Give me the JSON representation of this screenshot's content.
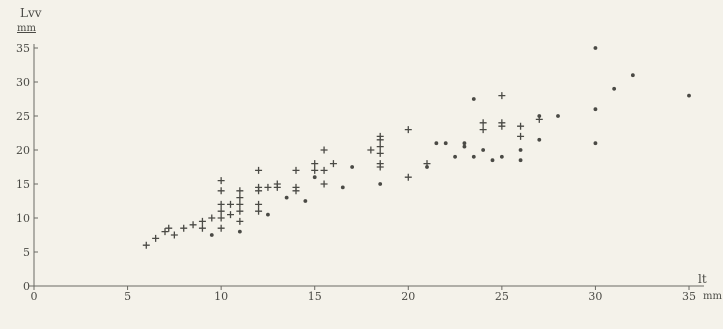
{
  "chart_data": {
    "type": "scatter",
    "title": "",
    "ylabel": "Lvv",
    "yunit": "mm",
    "xlabel": "lt",
    "xunit": "mm",
    "xlim": [
      0,
      35
    ],
    "ylim": [
      0,
      35
    ],
    "x_ticks": [
      0,
      5,
      10,
      15,
      20,
      25,
      30,
      35
    ],
    "y_ticks": [
      0,
      5,
      10,
      15,
      20,
      25,
      30,
      35
    ],
    "x_tick_labels": [
      "0",
      "5",
      "10",
      "15",
      "20",
      "25",
      "30",
      "35"
    ],
    "y_tick_labels": [
      "0",
      "5",
      "10",
      "15",
      "20",
      "25",
      "30",
      "35"
    ],
    "grid": false,
    "mark_color": "#4a4a45",
    "series": [
      {
        "marker": "plus",
        "points": [
          [
            6.0,
            6.0
          ],
          [
            6.5,
            7.0
          ],
          [
            7.0,
            8.0
          ],
          [
            7.2,
            8.5
          ],
          [
            7.5,
            7.5
          ],
          [
            8.0,
            8.5
          ],
          [
            8.5,
            9.0
          ],
          [
            9.0,
            8.5
          ],
          [
            9.0,
            9.5
          ],
          [
            9.5,
            10.0
          ],
          [
            10.0,
            8.5
          ],
          [
            10.0,
            10.0
          ],
          [
            10.0,
            11.0
          ],
          [
            10.0,
            12.0
          ],
          [
            10.0,
            14.0
          ],
          [
            10.0,
            15.5
          ],
          [
            10.5,
            10.5
          ],
          [
            10.5,
            12.0
          ],
          [
            11.0,
            9.5
          ],
          [
            11.0,
            11.0
          ],
          [
            11.0,
            12.0
          ],
          [
            11.0,
            13.0
          ],
          [
            11.0,
            14.0
          ],
          [
            12.0,
            11.0
          ],
          [
            12.0,
            12.0
          ],
          [
            12.0,
            14.0
          ],
          [
            12.0,
            14.5
          ],
          [
            12.0,
            17.0
          ],
          [
            12.5,
            14.5
          ],
          [
            13.0,
            14.5
          ],
          [
            13.0,
            15.0
          ],
          [
            14.0,
            14.0
          ],
          [
            14.0,
            14.5
          ],
          [
            14.0,
            17.0
          ],
          [
            15.0,
            17.0
          ],
          [
            15.0,
            18.0
          ],
          [
            15.5,
            15.0
          ],
          [
            15.5,
            17.0
          ],
          [
            15.5,
            20.0
          ],
          [
            16.0,
            18.0
          ],
          [
            18.0,
            20.0
          ],
          [
            18.5,
            17.5
          ],
          [
            18.5,
            18.0
          ],
          [
            18.5,
            19.5
          ],
          [
            18.5,
            20.5
          ],
          [
            18.5,
            21.5
          ],
          [
            18.5,
            22.0
          ],
          [
            20.0,
            16.0
          ],
          [
            20.0,
            23.0
          ],
          [
            21.0,
            18.0
          ],
          [
            24.0,
            23.0
          ],
          [
            24.0,
            24.0
          ],
          [
            25.0,
            23.5
          ],
          [
            25.0,
            24.0
          ],
          [
            25.0,
            28.0
          ],
          [
            26.0,
            22.0
          ],
          [
            26.0,
            23.5
          ],
          [
            27.0,
            24.5
          ]
        ]
      },
      {
        "marker": "dot",
        "points": [
          [
            9.5,
            7.5
          ],
          [
            11.0,
            8.0
          ],
          [
            12.5,
            10.5
          ],
          [
            13.5,
            13.0
          ],
          [
            14.5,
            12.5
          ],
          [
            15.0,
            16.0
          ],
          [
            16.5,
            14.5
          ],
          [
            17.0,
            17.5
          ],
          [
            18.5,
            15.0
          ],
          [
            21.0,
            17.5
          ],
          [
            21.5,
            21.0
          ],
          [
            22.0,
            21.0
          ],
          [
            22.5,
            19.0
          ],
          [
            23.0,
            21.0
          ],
          [
            23.0,
            20.5
          ],
          [
            23.5,
            19.0
          ],
          [
            23.5,
            27.5
          ],
          [
            24.0,
            20.0
          ],
          [
            24.5,
            18.5
          ],
          [
            25.0,
            19.0
          ],
          [
            26.0,
            18.5
          ],
          [
            26.0,
            20.0
          ],
          [
            27.0,
            21.5
          ],
          [
            27.0,
            25.0
          ],
          [
            28.0,
            25.0
          ],
          [
            30.0,
            21.0
          ],
          [
            30.0,
            26.0
          ],
          [
            30.0,
            35.0
          ],
          [
            31.0,
            29.0
          ],
          [
            32.0,
            31.0
          ],
          [
            35.0,
            28.0
          ]
        ]
      }
    ]
  }
}
